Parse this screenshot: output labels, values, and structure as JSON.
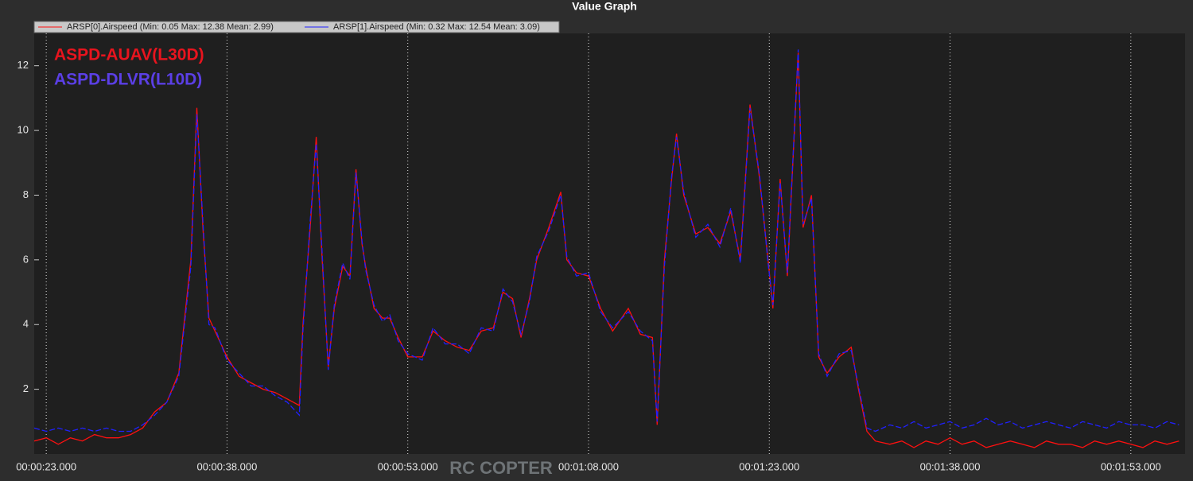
{
  "chart_data": {
    "type": "line",
    "title": "Value Graph",
    "annotations": [
      {
        "text": "ASPD-AUAV(L30D)",
        "color": "#e8141e"
      },
      {
        "text": "ASPD-DLVR(L10D)",
        "color": "#5b3fe6"
      }
    ],
    "watermark": "RC COPTER",
    "x": [
      22,
      23,
      24,
      25,
      26,
      27,
      28,
      29,
      30,
      31,
      32,
      33,
      34,
      35,
      35.5,
      36,
      36.5,
      37,
      38,
      39,
      40,
      41,
      42,
      43,
      44,
      44.3,
      44.9,
      45.4,
      45.9,
      46.4,
      46.9,
      47.6,
      48.2,
      48.7,
      49.2,
      49.5,
      50.2,
      50.9,
      51.5,
      52.2,
      53,
      54.2,
      55.1,
      56.1,
      57.1,
      58.1,
      59.1,
      60.1,
      60.9,
      61.7,
      62.4,
      63.1,
      63.7,
      64.7,
      65.7,
      66.2,
      67,
      68,
      69,
      70,
      71.3,
      72.3,
      73.3,
      73.7,
      74.3,
      74.9,
      75.3,
      75.9,
      76.9,
      77.9,
      78.9,
      79.8,
      80.6,
      81.4,
      82.2,
      82.9,
      83.3,
      83.9,
      84.5,
      85.4,
      85.8,
      86.5,
      87.1,
      87.8,
      88.8,
      89.8,
      90.4,
      91.1,
      91.8,
      93,
      94,
      95,
      96,
      97,
      98,
      99,
      100,
      101,
      102,
      103,
      104,
      105,
      106,
      107,
      108,
      109,
      110,
      111,
      112,
      113,
      114,
      115,
      116,
      117
    ],
    "series": [
      {
        "name": "ARSP[0].Airspeed  (Min: 0.05 Max: 12.38 Mean: 2.99)",
        "color": "#ff1010",
        "values": [
          0.4,
          0.5,
          0.3,
          0.5,
          0.4,
          0.6,
          0.5,
          0.5,
          0.6,
          0.8,
          1.3,
          1.6,
          2.5,
          6.0,
          10.7,
          7.0,
          4.2,
          3.8,
          3.0,
          2.4,
          2.2,
          2.0,
          1.9,
          1.7,
          1.5,
          4.0,
          7.0,
          9.8,
          6.0,
          2.7,
          4.5,
          5.8,
          5.5,
          8.8,
          6.5,
          5.8,
          4.5,
          4.2,
          4.2,
          3.6,
          3.0,
          3.0,
          3.8,
          3.5,
          3.3,
          3.2,
          3.8,
          3.9,
          5.0,
          4.8,
          3.6,
          4.8,
          6.0,
          7.0,
          8.1,
          6.0,
          5.6,
          5.5,
          4.5,
          3.8,
          4.5,
          3.7,
          3.6,
          0.9,
          6.0,
          8.5,
          9.9,
          8.0,
          6.8,
          7.0,
          6.5,
          7.5,
          6.0,
          10.8,
          8.5,
          6.0,
          4.5,
          8.5,
          5.5,
          12.4,
          7.0,
          8.0,
          3.0,
          2.5,
          3.0,
          3.3,
          2.0,
          0.7,
          0.4,
          0.3,
          0.4,
          0.2,
          0.4,
          0.3,
          0.5,
          0.3,
          0.4,
          0.2,
          0.3,
          0.4,
          0.3,
          0.2,
          0.4,
          0.3,
          0.3,
          0.2,
          0.4,
          0.3,
          0.4,
          0.3,
          0.2,
          0.4,
          0.3,
          0.4
        ]
      },
      {
        "name": "ARSP[1].Airspeed  (Min: 0.32 Max: 12.54 Mean: 3.09)",
        "color": "#2020ff",
        "values": [
          0.8,
          0.7,
          0.8,
          0.7,
          0.8,
          0.7,
          0.8,
          0.7,
          0.7,
          0.9,
          1.2,
          1.6,
          2.4,
          5.8,
          10.5,
          7.2,
          4.0,
          3.9,
          2.9,
          2.5,
          2.1,
          2.1,
          1.8,
          1.6,
          1.2,
          3.8,
          7.2,
          9.6,
          6.2,
          2.6,
          4.6,
          5.9,
          5.4,
          8.7,
          6.6,
          5.7,
          4.6,
          4.1,
          4.3,
          3.5,
          3.1,
          2.9,
          3.9,
          3.4,
          3.4,
          3.1,
          3.9,
          3.8,
          5.1,
          4.7,
          3.7,
          4.7,
          6.1,
          6.9,
          8.0,
          6.1,
          5.5,
          5.6,
          4.4,
          3.9,
          4.4,
          3.8,
          3.5,
          1.0,
          5.8,
          8.6,
          9.8,
          8.1,
          6.7,
          7.1,
          6.4,
          7.6,
          5.9,
          10.7,
          8.6,
          5.9,
          4.6,
          8.4,
          5.6,
          12.5,
          7.1,
          7.9,
          3.1,
          2.4,
          3.1,
          3.2,
          2.1,
          0.8,
          0.7,
          0.9,
          0.8,
          1.0,
          0.8,
          0.9,
          1.0,
          0.8,
          0.9,
          1.1,
          0.9,
          1.0,
          0.8,
          0.9,
          1.0,
          0.9,
          0.8,
          1.0,
          0.9,
          0.8,
          1.0,
          0.9,
          0.9,
          0.8,
          1.0,
          0.9
        ]
      }
    ],
    "xlim": [
      22,
      117.5
    ],
    "xticks": [
      {
        "value": 23,
        "label": "00:00:23.000"
      },
      {
        "value": 38,
        "label": "00:00:38.000"
      },
      {
        "value": 53,
        "label": "00:00:53.000"
      },
      {
        "value": 68,
        "label": "00:01:08.000"
      },
      {
        "value": 83,
        "label": "00:01:23.000"
      },
      {
        "value": 98,
        "label": "00:01:38.000"
      },
      {
        "value": 113,
        "label": "00:01:53.000"
      }
    ],
    "ylim": [
      0,
      13
    ],
    "yticks": [
      2,
      4,
      6,
      8,
      10,
      12
    ],
    "grid": true
  }
}
